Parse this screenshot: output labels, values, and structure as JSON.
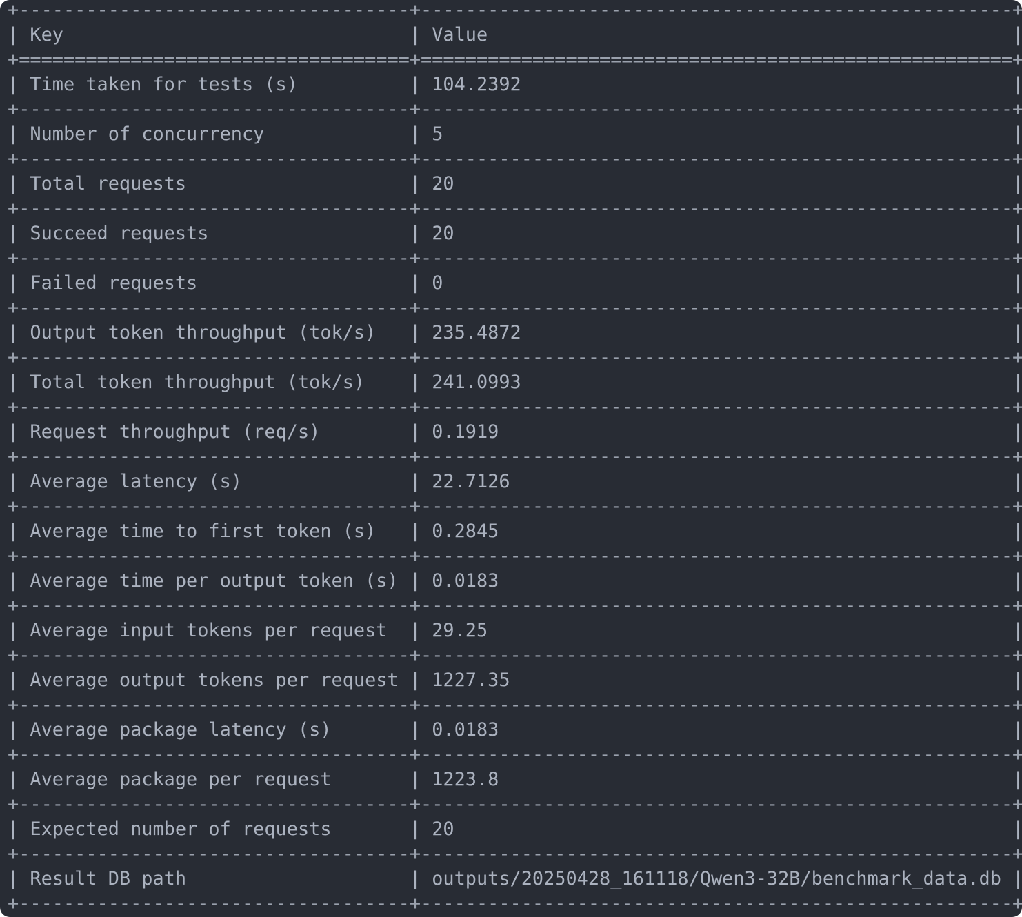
{
  "header": {
    "key": "Key",
    "value": "Value"
  },
  "rows": [
    {
      "key": "Time taken for tests (s)",
      "value": "104.2392"
    },
    {
      "key": "Number of concurrency",
      "value": "5"
    },
    {
      "key": "Total requests",
      "value": "20"
    },
    {
      "key": "Succeed requests",
      "value": "20"
    },
    {
      "key": "Failed requests",
      "value": "0"
    },
    {
      "key": "Output token throughput (tok/s)",
      "value": "235.4872"
    },
    {
      "key": "Total token throughput (tok/s)",
      "value": "241.0993"
    },
    {
      "key": "Request throughput (req/s)",
      "value": "0.1919"
    },
    {
      "key": "Average latency (s)",
      "value": "22.7126"
    },
    {
      "key": "Average time to first token (s)",
      "value": "0.2845"
    },
    {
      "key": "Average time per output token (s)",
      "value": "0.0183"
    },
    {
      "key": "Average input tokens per request",
      "value": "29.25"
    },
    {
      "key": "Average output tokens per request",
      "value": "1227.35"
    },
    {
      "key": "Average package latency (s)",
      "value": "0.0183"
    },
    {
      "key": "Average package per request",
      "value": "1223.8"
    },
    {
      "key": "Expected number of requests",
      "value": "20"
    },
    {
      "key": "Result DB path",
      "value": "outputs/20250428_161118/Qwen3-32B/benchmark_data.db"
    }
  ]
}
